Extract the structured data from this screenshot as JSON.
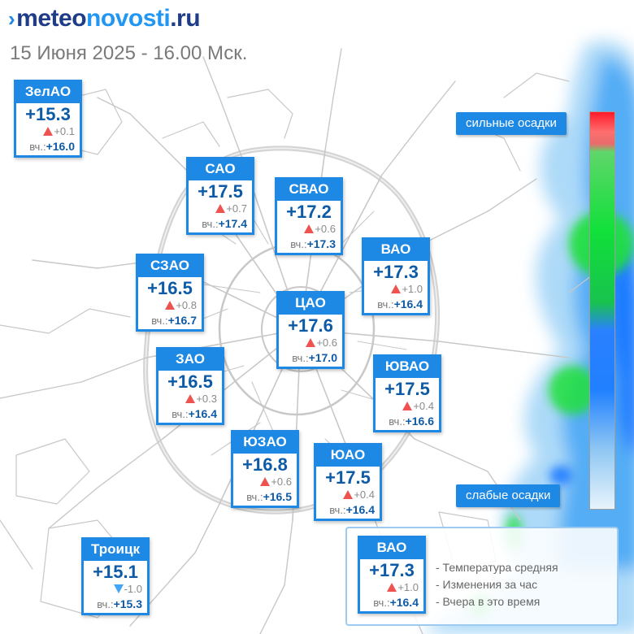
{
  "header": {
    "brand_dark": "meteo",
    "brand_light": "novosti",
    "brand_tld": ".ru",
    "datetime": "15 Июня 2025 - 16.00 Мск."
  },
  "map": {
    "road_color": "#c8c8c8",
    "precip_colors": [
      "#1e7bff",
      "#4aa8f5",
      "#9fd3f7",
      "#1ee03a"
    ]
  },
  "districts": [
    {
      "name": "ЗелАО",
      "temp": "+15.3",
      "trend": "up",
      "change": "+0.1",
      "yesterday_label": "вч.:",
      "yesterday": "+16.0"
    },
    {
      "name": "САО",
      "temp": "+17.5",
      "trend": "up",
      "change": "+0.7",
      "yesterday_label": "вч.:",
      "yesterday": "+17.4"
    },
    {
      "name": "СВАО",
      "temp": "+17.2",
      "trend": "up",
      "change": "+0.6",
      "yesterday_label": "вч.:",
      "yesterday": "+17.3"
    },
    {
      "name": "ВАО",
      "temp": "+17.3",
      "trend": "up",
      "change": "+1.0",
      "yesterday_label": "вч.:",
      "yesterday": "+16.4"
    },
    {
      "name": "СЗАО",
      "temp": "+16.5",
      "trend": "up",
      "change": "+0.8",
      "yesterday_label": "вч.:",
      "yesterday": "+16.7"
    },
    {
      "name": "ЦАО",
      "temp": "+17.6",
      "trend": "up",
      "change": "+0.6",
      "yesterday_label": "вч.:",
      "yesterday": "+17.0"
    },
    {
      "name": "ЗАО",
      "temp": "+16.5",
      "trend": "up",
      "change": "+0.3",
      "yesterday_label": "вч.:",
      "yesterday": "+16.4"
    },
    {
      "name": "ЮВАО",
      "temp": "+17.5",
      "trend": "up",
      "change": "+0.4",
      "yesterday_label": "вч.:",
      "yesterday": "+16.6"
    },
    {
      "name": "ЮЗАО",
      "temp": "+16.8",
      "trend": "up",
      "change": "+0.6",
      "yesterday_label": "вч.:",
      "yesterday": "+16.5"
    },
    {
      "name": "ЮАО",
      "temp": "+17.5",
      "trend": "up",
      "change": "+0.4",
      "yesterday_label": "вч.:",
      "yesterday": "+16.4"
    },
    {
      "name": "Троицк",
      "temp": "+15.1",
      "trend": "down",
      "change": "-1.0",
      "yesterday_label": "вч.:",
      "yesterday": "+15.3"
    }
  ],
  "scale": {
    "top_label": "сильные осадки",
    "bottom_label": "слабые осадки"
  },
  "legend": {
    "sample": {
      "name": "ВАО",
      "temp": "+17.3",
      "trend": "up",
      "change": "+1.0",
      "yesterday_label": "вч.:",
      "yesterday": "+16.4"
    },
    "lines": [
      "- Температура средняя",
      "- Изменения за час",
      "- Вчера в это время"
    ]
  }
}
